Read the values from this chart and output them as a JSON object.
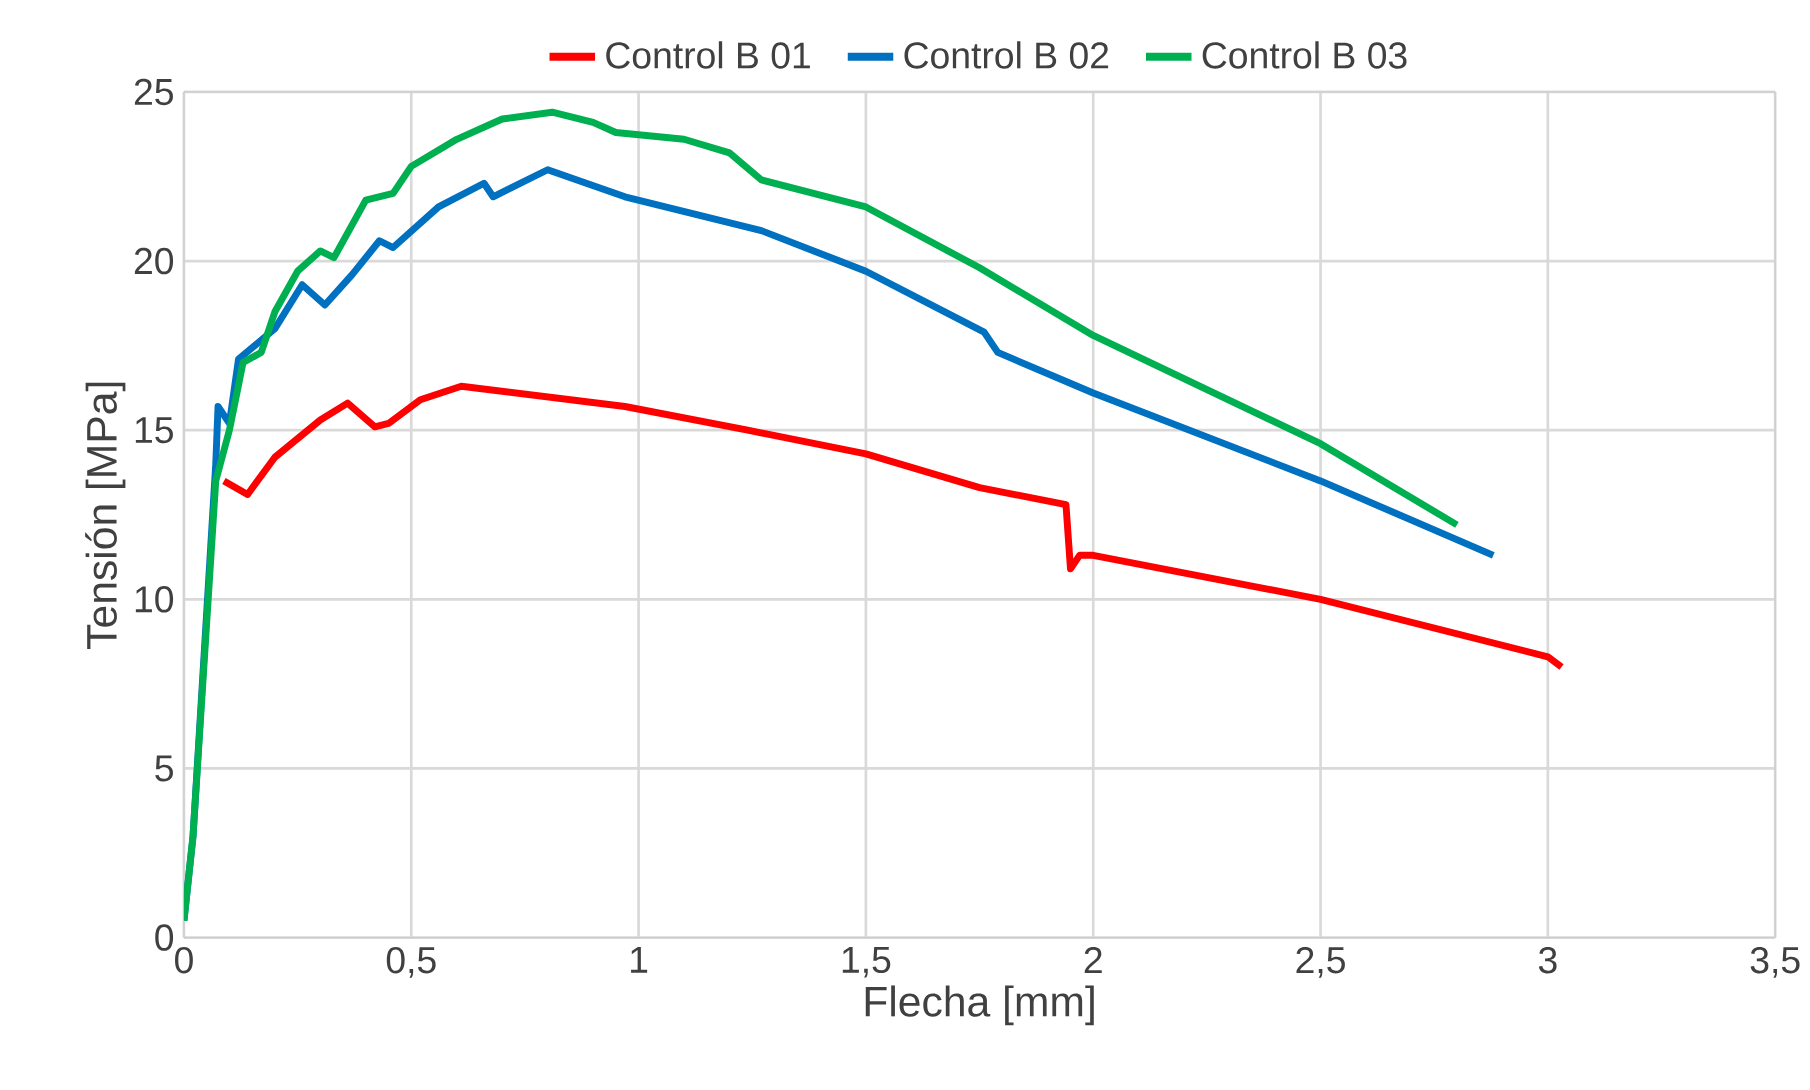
{
  "chart_data": {
    "type": "line",
    "xlabel": "Flecha [mm]",
    "ylabel": "Tensión [MPa]",
    "grid": true,
    "legend": "top",
    "xlim": [
      0,
      3.5
    ],
    "ylim": [
      0,
      25
    ],
    "xticks": [
      0,
      {
        "value": 0.5,
        "label": "0,5"
      },
      1,
      {
        "value": 1.5,
        "label": "1,5"
      },
      2,
      {
        "value": 2.5,
        "label": "2,5"
      },
      3,
      {
        "value": 3.5,
        "label": "3,5"
      }
    ],
    "yticks": [
      0,
      5,
      10,
      15,
      20,
      25
    ],
    "series": [
      {
        "name": "Control B 01",
        "color": "#ff0000",
        "x": [
          0.088,
          0.14,
          0.2,
          0.3,
          0.36,
          0.42,
          0.45,
          0.52,
          0.61,
          0.97,
          1.24,
          1.5,
          1.75,
          1.94,
          1.95,
          1.97,
          2.0,
          2.5,
          3.0,
          3.03
        ],
        "values": [
          13.5,
          13.1,
          14.2,
          15.3,
          15.8,
          15.1,
          15.2,
          15.9,
          16.3,
          15.7,
          15.0,
          14.3,
          13.3,
          12.8,
          10.9,
          11.3,
          11.3,
          10.0,
          8.3,
          8.0
        ]
      },
      {
        "name": "Control B 02",
        "color": "#0070c0",
        "x": [
          0,
          0.02,
          0.07,
          0.075,
          0.1,
          0.12,
          0.2,
          0.26,
          0.31,
          0.37,
          0.43,
          0.46,
          0.56,
          0.66,
          0.68,
          0.8,
          0.97,
          1.27,
          1.5,
          1.76,
          1.79,
          2.0,
          2.5,
          2.88
        ],
        "values": [
          0.5,
          3,
          14,
          15.7,
          15.2,
          17.1,
          18.0,
          19.3,
          18.7,
          19.6,
          20.6,
          20.4,
          21.6,
          22.3,
          21.9,
          22.7,
          21.9,
          20.9,
          19.7,
          17.9,
          17.3,
          16.1,
          13.5,
          11.3
        ]
      },
      {
        "name": "Control B 03",
        "color": "#00b050",
        "x": [
          0,
          0.02,
          0.07,
          0.1,
          0.13,
          0.17,
          0.2,
          0.25,
          0.3,
          0.33,
          0.4,
          0.46,
          0.5,
          0.6,
          0.7,
          0.81,
          0.9,
          0.95,
          1.1,
          1.2,
          1.27,
          1.5,
          1.75,
          2.0,
          2.5,
          2.8
        ],
        "values": [
          0.5,
          3,
          13.5,
          15,
          17,
          17.3,
          18.5,
          19.7,
          20.3,
          20.1,
          21.8,
          22.0,
          22.8,
          23.6,
          24.2,
          24.4,
          24.1,
          23.8,
          23.6,
          23.2,
          22.4,
          21.6,
          19.8,
          17.8,
          14.6,
          12.2
        ]
      }
    ]
  }
}
